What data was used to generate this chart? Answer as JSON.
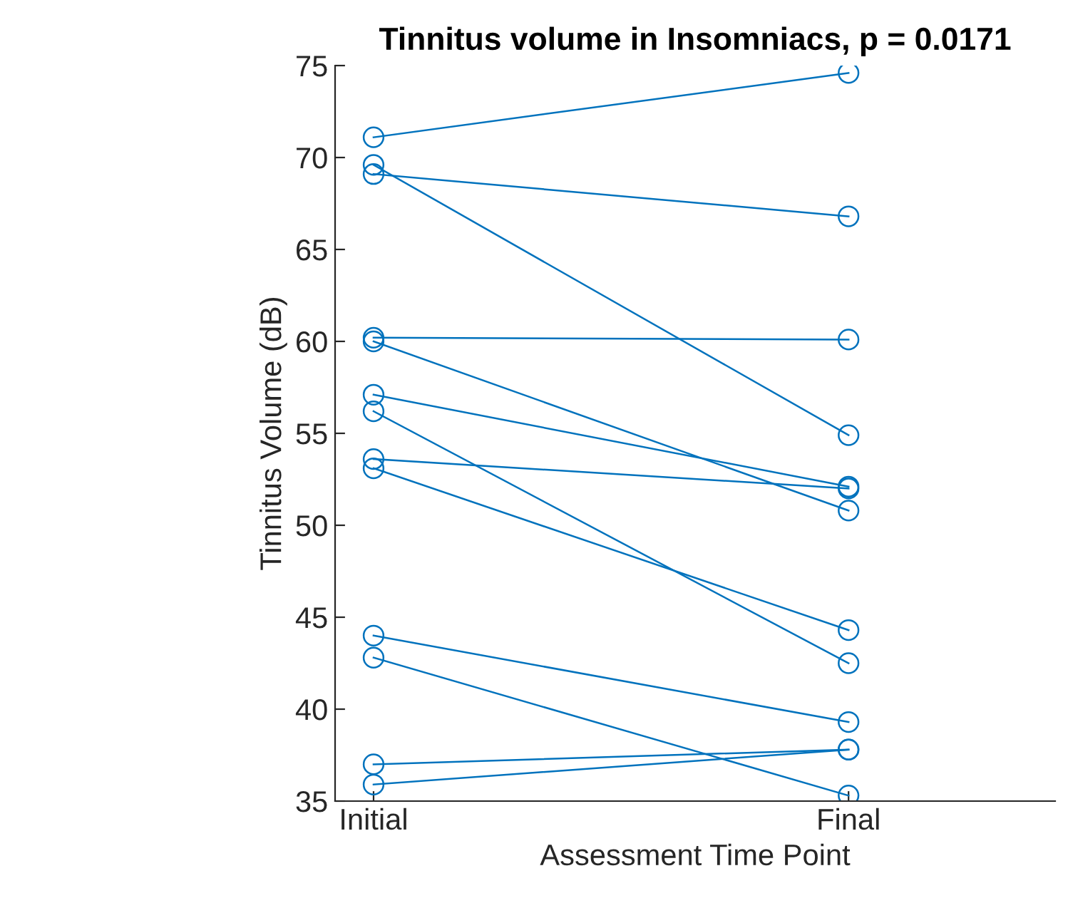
{
  "chart_data": {
    "type": "line",
    "title": "Tinnitus volume in Insomniacs, p = 0.0171",
    "xlabel": "Assessment Time Point",
    "ylabel": "Tinnitus Volume (dB)",
    "categories": [
      "Initial",
      "Final"
    ],
    "marker": "circle",
    "line_style": "solid",
    "grid": false,
    "legend": false,
    "ylim": [
      35,
      75
    ],
    "yticks": [
      35,
      40,
      45,
      50,
      55,
      60,
      65,
      70,
      75
    ],
    "series": [
      {
        "color": "#0072bd",
        "values": [
          71.1,
          74.6
        ]
      },
      {
        "color": "#0072bd",
        "values": [
          69.6,
          54.9
        ]
      },
      {
        "color": "#0072bd",
        "values": [
          69.1,
          66.8
        ]
      },
      {
        "color": "#0072bd",
        "values": [
          60.2,
          60.1
        ]
      },
      {
        "color": "#0072bd",
        "values": [
          60.0,
          50.8
        ]
      },
      {
        "color": "#0072bd",
        "values": [
          57.1,
          52.1
        ]
      },
      {
        "color": "#0072bd",
        "values": [
          56.2,
          42.5
        ]
      },
      {
        "color": "#0072bd",
        "values": [
          53.6,
          52.0
        ]
      },
      {
        "color": "#0072bd",
        "values": [
          53.1,
          44.3
        ]
      },
      {
        "color": "#0072bd",
        "values": [
          44.0,
          39.3
        ]
      },
      {
        "color": "#0072bd",
        "values": [
          42.8,
          35.3
        ]
      },
      {
        "color": "#0072bd",
        "values": [
          37.0,
          37.8
        ]
      },
      {
        "color": "#0072bd",
        "values": [
          35.9,
          37.8
        ]
      }
    ]
  }
}
